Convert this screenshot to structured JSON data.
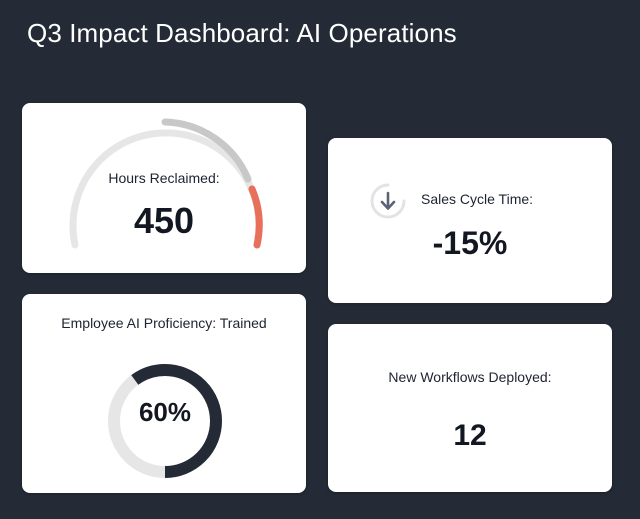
{
  "dashboard": {
    "title": "Q3 Impact Dashboard: AI Operations"
  },
  "cards": {
    "hours": {
      "label": "Hours Reclaimed:",
      "value": "450",
      "gauge_color": "#e8705a"
    },
    "sales": {
      "label": "Sales Cycle Time:",
      "value": "-15%",
      "icon": "arrow-down-icon"
    },
    "proficiency": {
      "label": "Employee AI Proficiency: Trained",
      "value": "60%",
      "fraction": 0.6,
      "ring_color": "#242b36"
    },
    "workflows": {
      "label": "New Workflows Deployed:",
      "value": "12"
    }
  },
  "colors": {
    "background": "#242b36",
    "card": "#ffffff",
    "track": "#e6e6e6",
    "accent": "#e8705a",
    "icon": "#5b6378"
  }
}
